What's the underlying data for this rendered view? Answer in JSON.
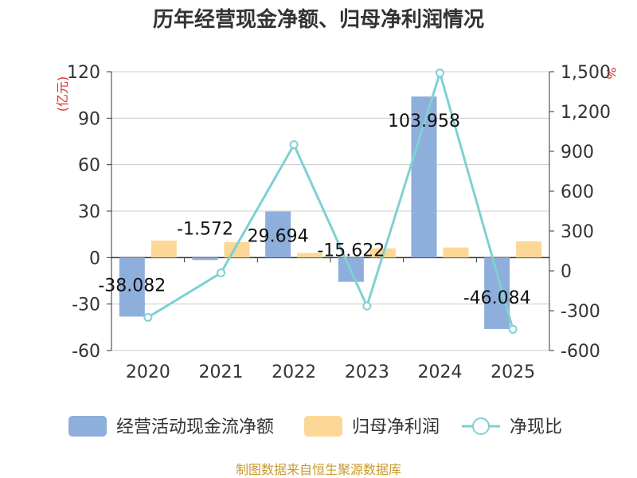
{
  "chart_data": {
    "type": "bar+line",
    "title": "历年经营现金净额、归母净利润情况",
    "categories": [
      "2020",
      "2021",
      "2022",
      "2023",
      "2024",
      "2025"
    ],
    "left_axis": {
      "unit": "(亿元)",
      "ylim": [
        -60,
        120
      ],
      "ticks": [
        -60,
        -30,
        0,
        30,
        60,
        90,
        120
      ],
      "tick_labels": [
        "-60",
        "-30",
        "0",
        "30",
        "60",
        "90",
        "120"
      ]
    },
    "right_axis": {
      "unit": "%",
      "ylim": [
        -600,
        1500
      ],
      "ticks": [
        -600,
        -300,
        0,
        300,
        600,
        900,
        1200,
        1500
      ],
      "tick_labels": [
        "-600",
        "-300",
        "0",
        "300",
        "600",
        "900",
        "1,200",
        "1,500"
      ]
    },
    "series": [
      {
        "name": "经营活动现金流净额",
        "type": "bar",
        "axis": "left",
        "color": "#8eaedb",
        "values": [
          -38.082,
          -1.572,
          29.694,
          -15.622,
          103.958,
          -46.084
        ],
        "labels": [
          "-38.082",
          "-1.572",
          "29.694",
          "-15.622",
          "103.958",
          "-46.084"
        ]
      },
      {
        "name": "归母净利润",
        "type": "bar",
        "axis": "left",
        "color": "#fdd796",
        "values": [
          11.0,
          10.0,
          3.0,
          6.0,
          6.5,
          10.5
        ]
      },
      {
        "name": "净现比",
        "type": "line",
        "axis": "right",
        "color": "#7fd0d4",
        "values": [
          -350,
          -15,
          950,
          -265,
          1490,
          -440
        ]
      }
    ],
    "grid": true,
    "legend_position": "bottom"
  },
  "source_note": "制图数据来自恒生聚源数据库"
}
